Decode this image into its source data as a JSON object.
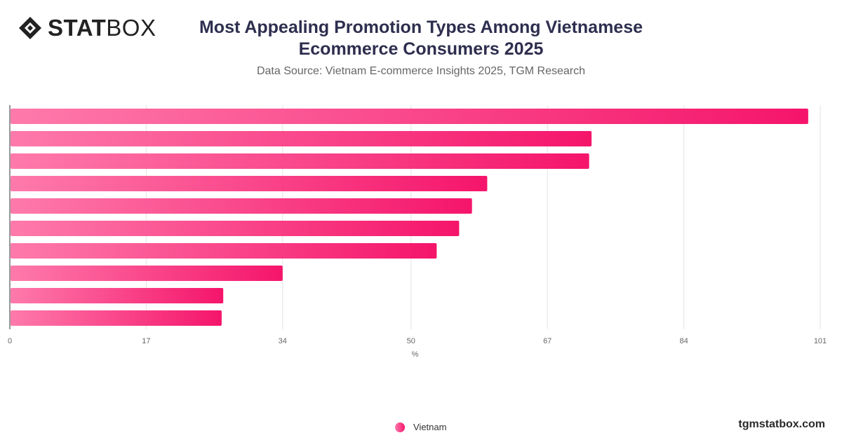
{
  "header": {
    "logo_text_bold": "STAT",
    "logo_text_thin": "BOX",
    "title": "Most Appealing Promotion Types Among Vietnamese Ecommerce Consumers 2025",
    "subtitle": "Data Source: Vietnam E-commerce Insights 2025, TGM Research"
  },
  "footer": {
    "site": "tgmstatbox.com"
  },
  "colors": {
    "bar_start": "#fe7aab",
    "bar_end": "#f5156b",
    "title": "#2e2e4f",
    "grid": "#e3e3e3"
  },
  "chart_data": {
    "type": "bar",
    "orientation": "horizontal",
    "xlabel": "%",
    "xlim": [
      0,
      101
    ],
    "xticks": [
      0,
      17,
      34,
      50,
      67,
      84,
      101
    ],
    "grid": true,
    "legend_position": "bottom",
    "series": [
      {
        "name": "Vietnam",
        "values": [
          99.5,
          72.5,
          72.2,
          59.5,
          57.6,
          56.0,
          53.2,
          34.0,
          26.6,
          26.4
        ]
      }
    ]
  }
}
